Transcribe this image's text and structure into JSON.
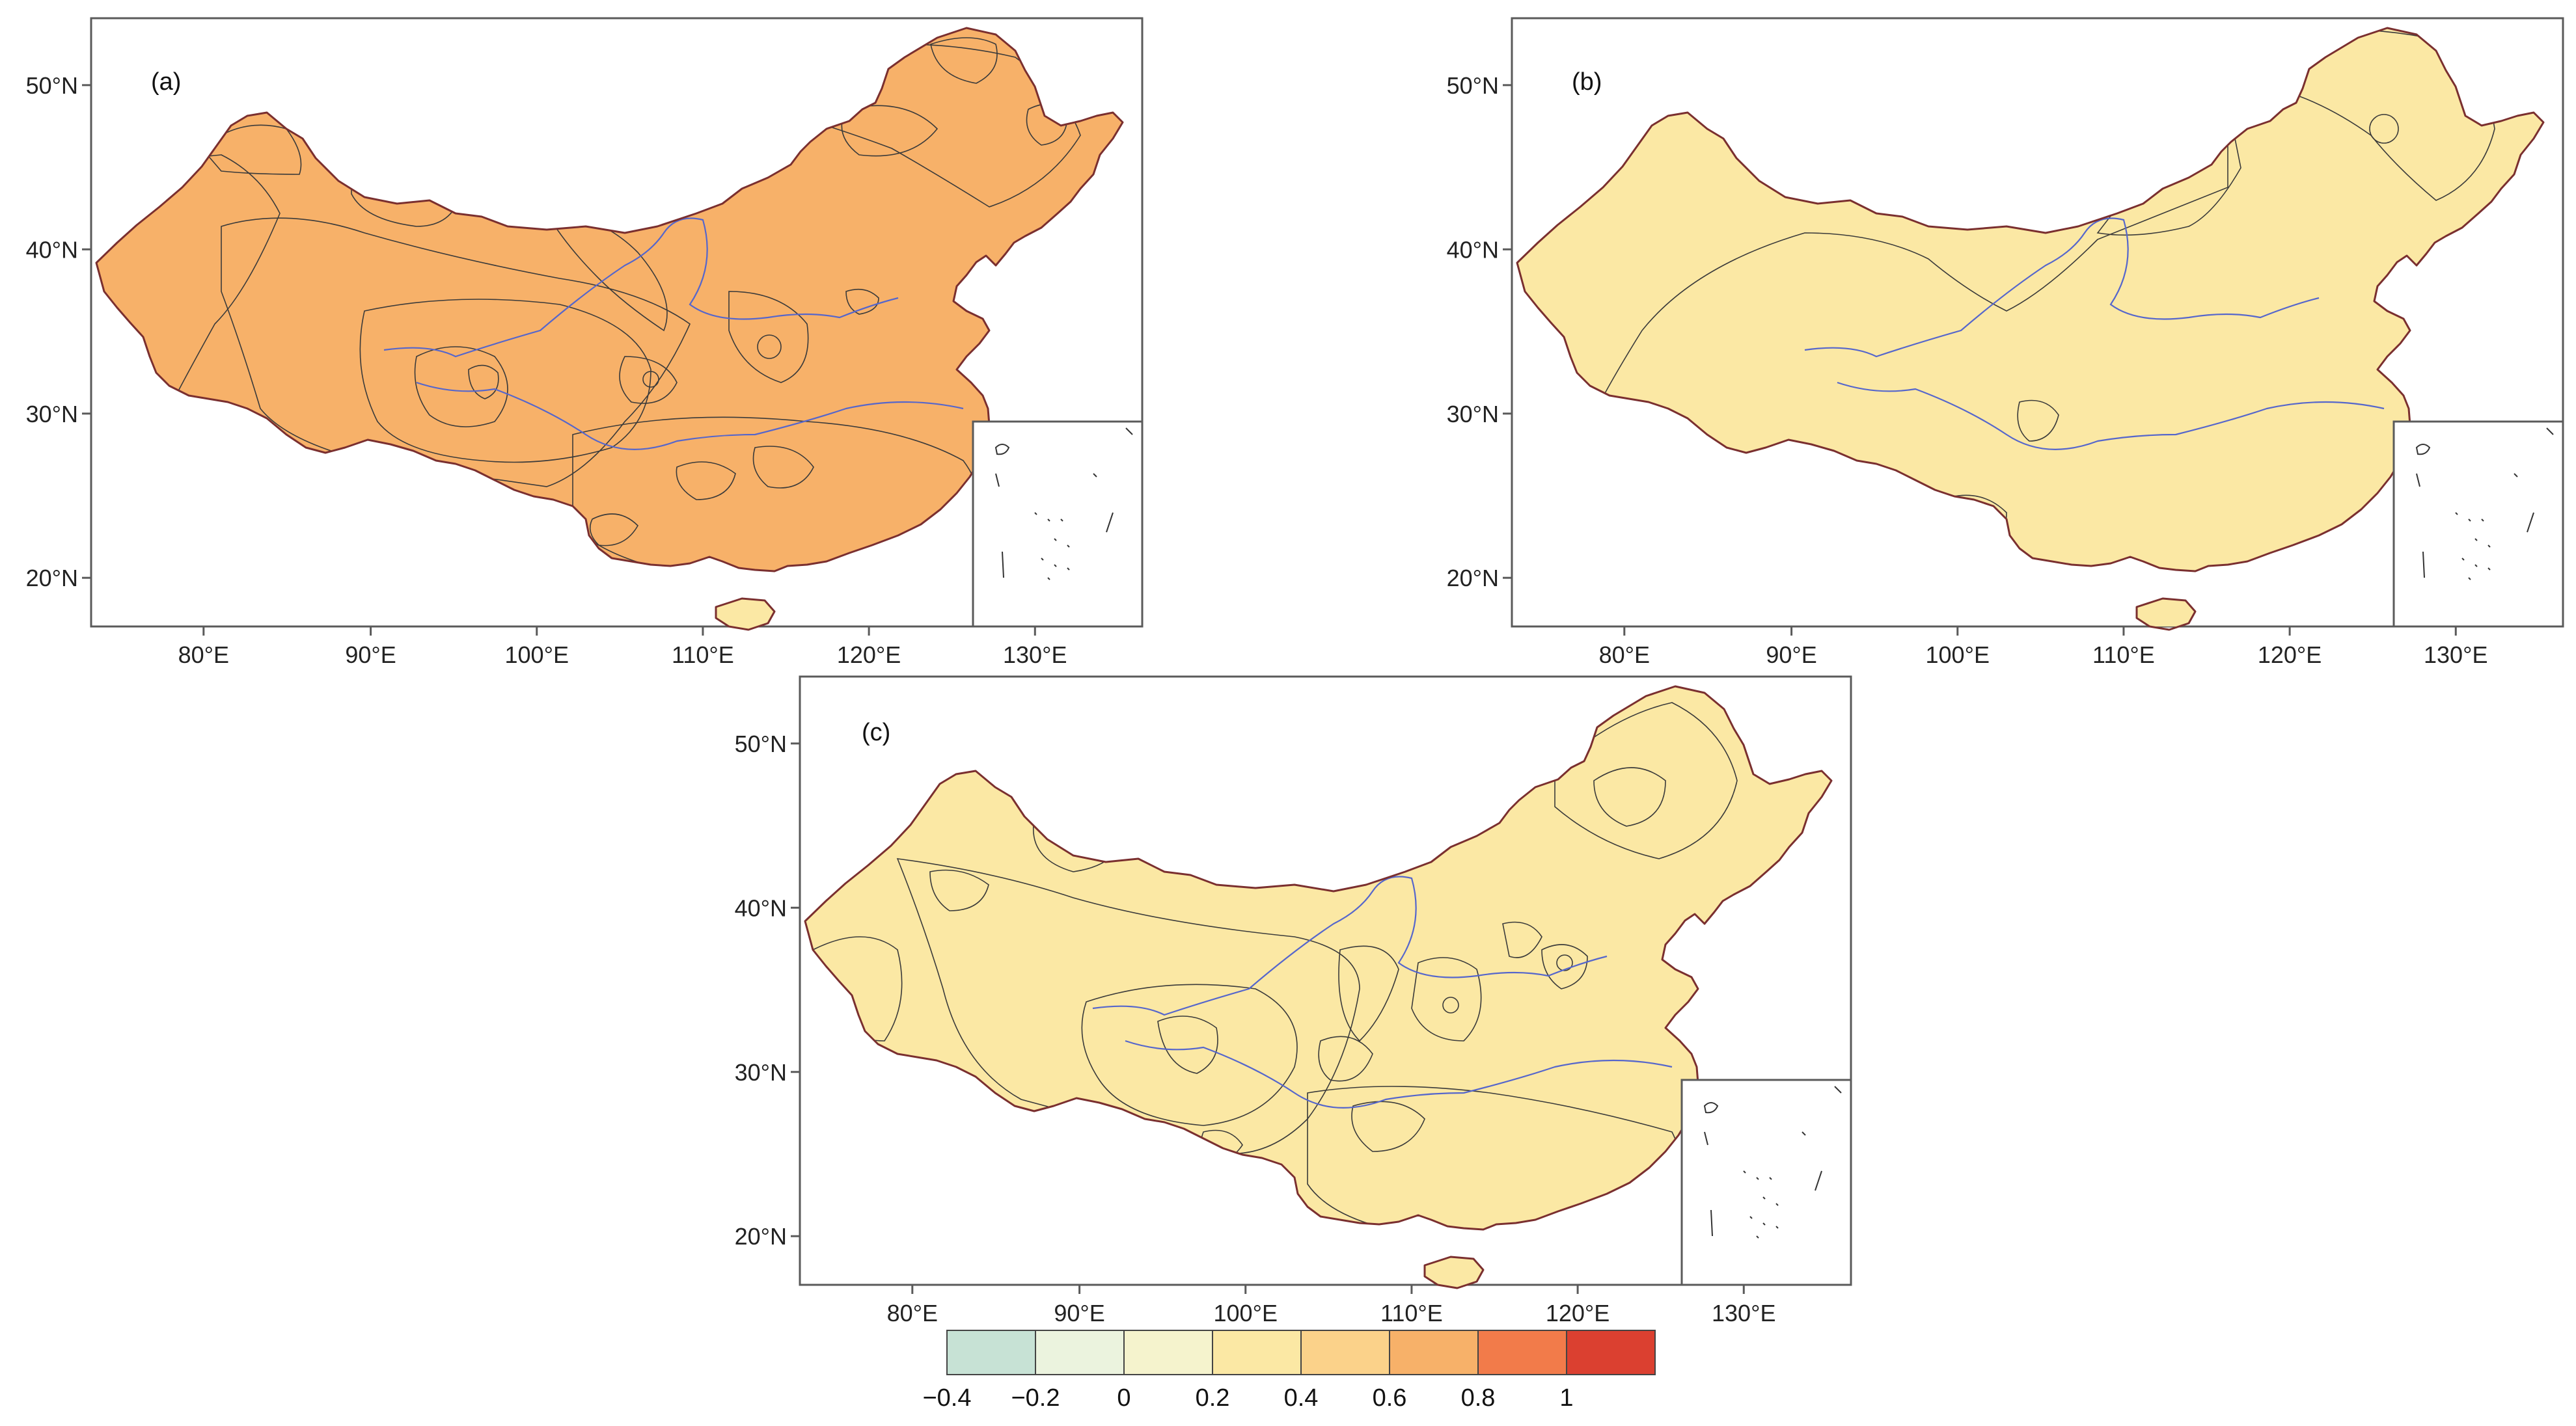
{
  "figure": {
    "panels": [
      {
        "id": "a",
        "label": "(a)"
      },
      {
        "id": "b",
        "label": "(b)"
      },
      {
        "id": "c",
        "label": "(c)"
      }
    ],
    "lon_ticks": [
      "80°E",
      "90°E",
      "100°E",
      "110°E",
      "120°E",
      "130°E"
    ],
    "lat_ticks": [
      "50°N",
      "40°N",
      "30°N",
      "20°N"
    ],
    "colorbar": {
      "colors": [
        "#c7e2d5",
        "#ebf3de",
        "#f5f3cd",
        "#fbe8a4",
        "#fbd28a",
        "#f7b169",
        "#f27b4a",
        "#db4030"
      ],
      "tick_labels": [
        "−0.4",
        "−0.2",
        "0",
        "0.2",
        "0.4",
        "0.6",
        "0.8",
        "1"
      ]
    },
    "levels": {
      "L_neg02": "#ebf3de",
      "L_0": "#f5f3cd",
      "L_02": "#fbe8a4",
      "L_04": "#fbd28a",
      "L_06": "#f7b169",
      "L_08": "#f27b4a",
      "L_1": "#db4030",
      "L_neg04": "#c7e2d5"
    }
  }
}
